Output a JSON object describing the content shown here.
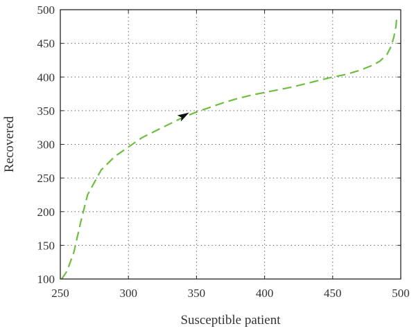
{
  "chart_data": {
    "type": "line",
    "title": "",
    "xlabel": "Susceptible patient",
    "ylabel": "Recovered",
    "xlim": [
      250,
      500
    ],
    "ylim": [
      100,
      500
    ],
    "xticks": [
      250,
      300,
      350,
      400,
      450,
      500
    ],
    "yticks": [
      100,
      150,
      200,
      250,
      300,
      350,
      400,
      450,
      500
    ],
    "grid": true,
    "grid_style": "dotted",
    "series": [
      {
        "color": "#6cbf3e",
        "line_style": "dashed",
        "x": [
          251,
          255,
          260,
          265,
          270,
          280,
          290,
          300,
          310,
          320,
          330,
          340,
          350,
          360,
          370,
          380,
          390,
          400,
          410,
          420,
          430,
          440,
          450,
          460,
          470,
          480,
          485,
          490,
          493,
          495,
          496.5,
          497
        ],
        "y": [
          100,
          112,
          140,
          185,
          225,
          262,
          282,
          296,
          310,
          320,
          330,
          340,
          348,
          355,
          362,
          368,
          373,
          377,
          381,
          385,
          390,
          395,
          400,
          404,
          410,
          418,
          424,
          434,
          446,
          460,
          475,
          488
        ]
      }
    ],
    "annotations": [
      {
        "type": "arrow",
        "x": 340,
        "y": 340,
        "direction": "right",
        "color": "#111111"
      }
    ]
  }
}
